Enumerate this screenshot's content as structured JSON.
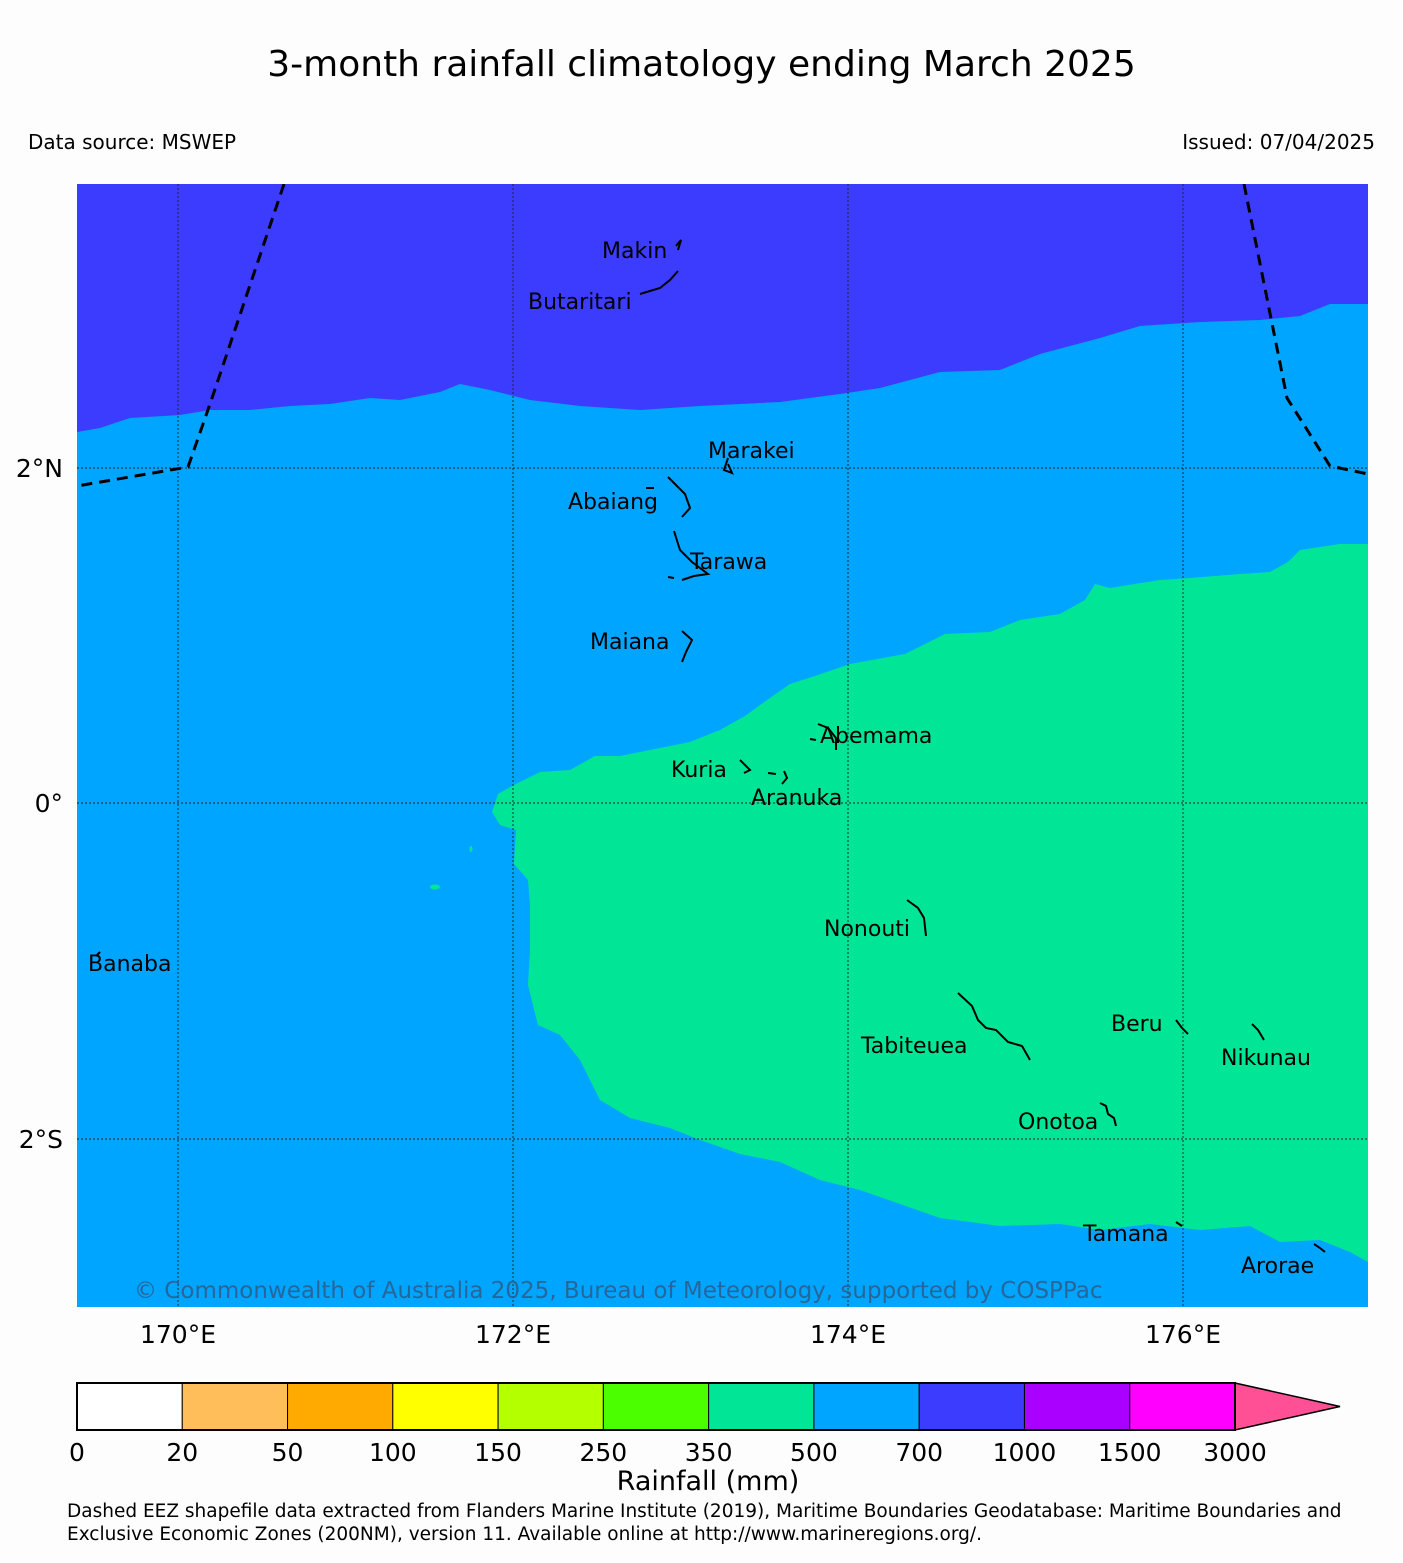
{
  "title": "3-month rainfall climatology ending March 2025",
  "source": "Data source: MSWEP",
  "issued": "Issued: 07/04/2025",
  "copyright": "© Commonwealth of Australia 2025, Bureau of Meteorology, supported by COSPPac",
  "footnote_line1": "Dashed EEZ shapefile data extracted from Flanders Marine Institute (2019), Maritime Boundaries Geodatabase: Maritime Boundaries and",
  "footnote_line2": "Exclusive Economic Zones (200NM), version 11. Available online at http://www.marineregions.org/.",
  "axes": {
    "lon_ticks": [
      "170°E",
      "172°E",
      "174°E",
      "176°E"
    ],
    "lat_ticks": [
      "2°N",
      "0°",
      "2°S"
    ]
  },
  "places": {
    "makin": "Makin",
    "butaritari": "Butaritari",
    "marakei": "Marakei",
    "abaiang": "Abaiang",
    "tarawa": "Tarawa",
    "maiana": "Maiana",
    "abemama": "Abemama",
    "kuria": "Kuria",
    "aranuka": "Aranuka",
    "nonouti": "Nonouti",
    "banaba": "Banaba",
    "beru": "Beru",
    "tabiteuea": "Tabiteuea",
    "nikunau": "Nikunau",
    "onotoa": "Onotoa",
    "tamana": "Tamana",
    "arorae": "Arorae"
  },
  "legend": {
    "label": "Rainfall (mm)",
    "ticks": [
      "0",
      "20",
      "50",
      "100",
      "150",
      "250",
      "350",
      "500",
      "700",
      "1000",
      "1500",
      "3000"
    ],
    "colors": [
      "#ffffff",
      "#ffbe5a",
      "#ffaa00",
      "#ffff00",
      "#b4ff00",
      "#4cff00",
      "#00e696",
      "#00a5ff",
      "#3c3cff",
      "#aa00ff",
      "#ff00ff",
      "#ff5096"
    ]
  },
  "map_colors": {
    "band_700_1000": "#3c3cff",
    "band_500_700": "#00a5ff",
    "band_350_500": "#00e696"
  }
}
